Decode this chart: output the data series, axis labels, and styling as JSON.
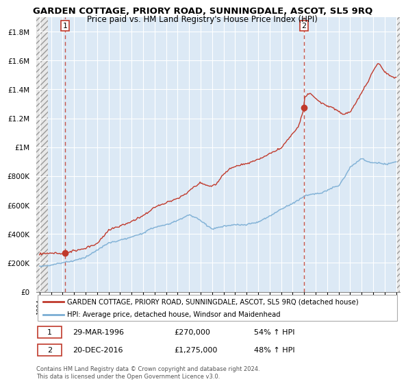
{
  "title": "GARDEN COTTAGE, PRIORY ROAD, SUNNINGDALE, ASCOT, SL5 9RQ",
  "subtitle": "Price paid vs. HM Land Registry's House Price Index (HPI)",
  "ylim": [
    0,
    1900000
  ],
  "yticks": [
    0,
    200000,
    400000,
    600000,
    800000,
    1000000,
    1200000,
    1400000,
    1600000,
    1800000
  ],
  "ytick_labels": [
    "£0",
    "£200K",
    "£400K",
    "£600K",
    "£800K",
    "£1M",
    "£1.2M",
    "£1.4M",
    "£1.6M",
    "£1.8M"
  ],
  "xlim_start": 1993.7,
  "xlim_end": 2025.3,
  "hpi_color": "#7aadd4",
  "price_color": "#c0392b",
  "bg_plot": "#dce9f5",
  "grid_color": "#ffffff",
  "dashed_color": "#c0392b",
  "sale1_x": 1996.24,
  "sale1_y": 270000,
  "sale2_x": 2016.97,
  "sale2_y": 1275000,
  "legend_line1": "GARDEN COTTAGE, PRIORY ROAD, SUNNINGDALE, ASCOT, SL5 9RQ (detached house)",
  "legend_line2": "HPI: Average price, detached house, Windsor and Maidenhead",
  "footer": "Contains HM Land Registry data © Crown copyright and database right 2024.\nThis data is licensed under the Open Government Licence v3.0.",
  "xtick_years": [
    1994,
    1995,
    1996,
    1997,
    1998,
    1999,
    2000,
    2001,
    2002,
    2003,
    2004,
    2005,
    2006,
    2007,
    2008,
    2009,
    2010,
    2011,
    2012,
    2013,
    2014,
    2015,
    2016,
    2017,
    2018,
    2019,
    2020,
    2021,
    2022,
    2023,
    2024,
    2025
  ],
  "hatch_left_end": 1994.7,
  "hatch_right_start": 2025.0,
  "data_start_x": 1994.0,
  "data_end_x": 2025.0
}
